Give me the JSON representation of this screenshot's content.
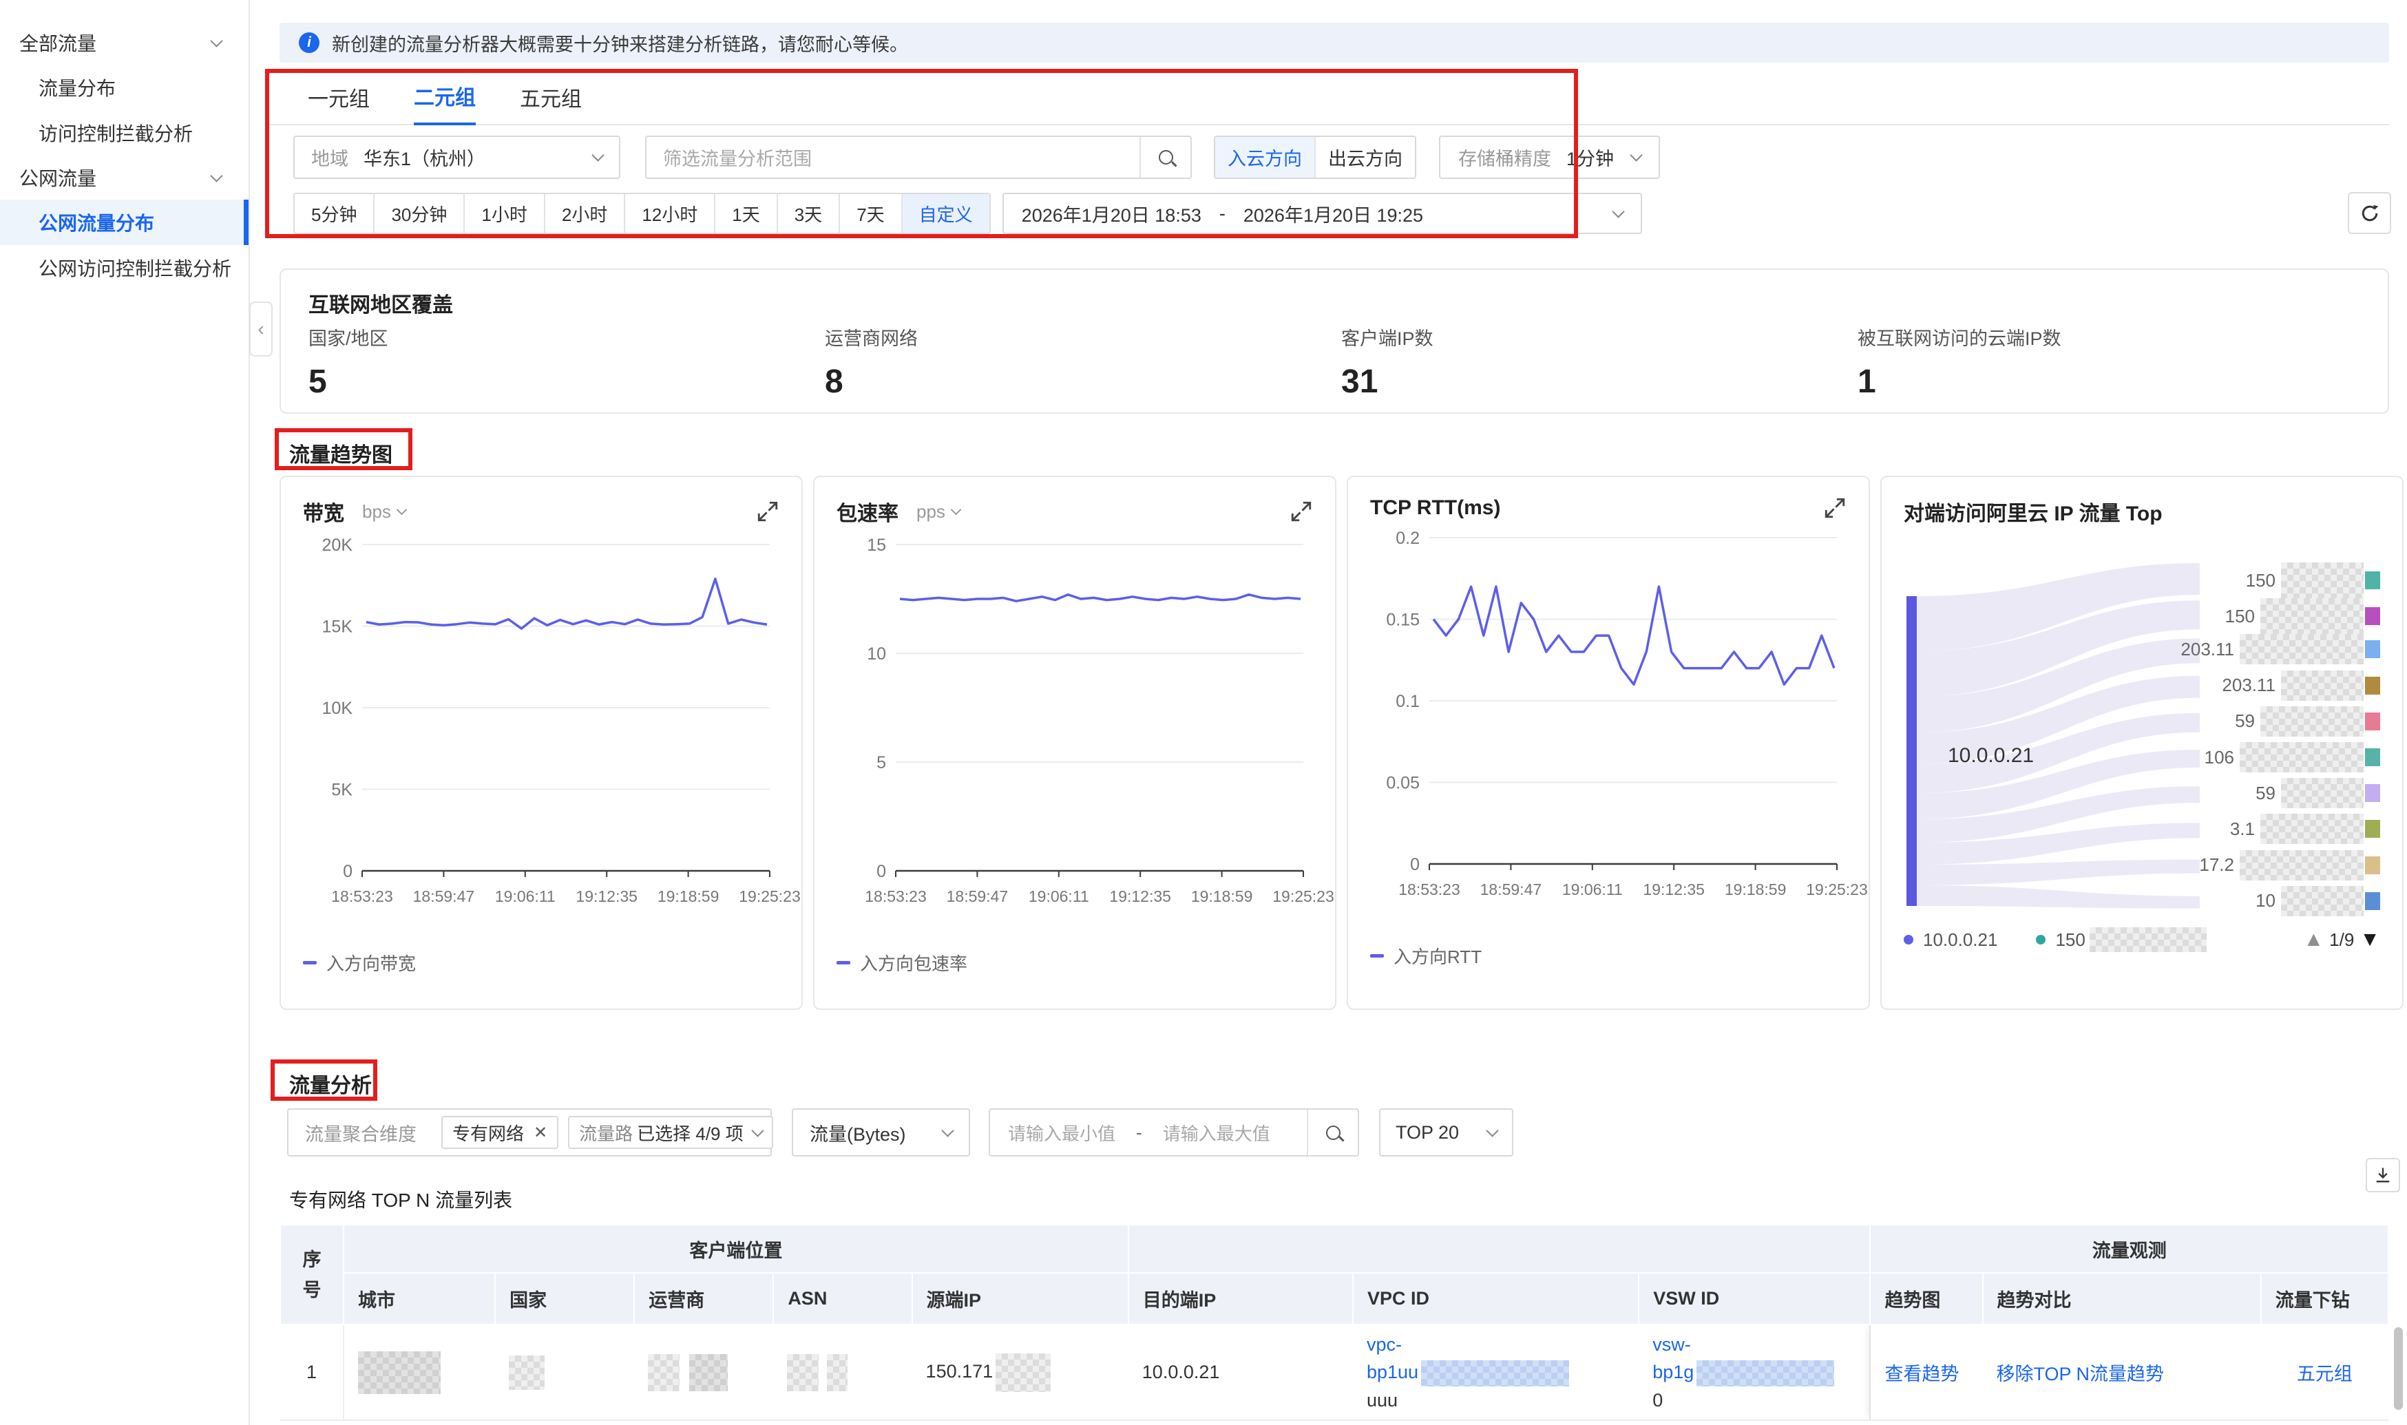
{
  "colors": {
    "accent": "#1a66ec",
    "line": "#5c5fe9",
    "annotation_red": "#e41d1d",
    "teal": "#2ea89f"
  },
  "sidebar": {
    "groups": [
      {
        "label": "全部流量",
        "items": [
          {
            "label": "流量分布",
            "active": false
          },
          {
            "label": "访问控制拦截分析",
            "active": false
          }
        ]
      },
      {
        "label": "公网流量",
        "items": [
          {
            "label": "公网流量分布",
            "active": true
          },
          {
            "label": "公网访问控制拦截分析",
            "active": false
          }
        ]
      }
    ]
  },
  "banner": {
    "text": "新创建的流量分析器大概需要十分钟来搭建分析链路，请您耐心等候。"
  },
  "tabs": [
    {
      "label": "一元组",
      "active": false
    },
    {
      "label": "二元组",
      "active": true
    },
    {
      "label": "五元组",
      "active": false
    }
  ],
  "filters": {
    "region_label": "地域",
    "region_value": "华东1（杭州）",
    "search_placeholder": "筛选流量分析范围",
    "direction_options": [
      {
        "label": "入云方向",
        "active": true
      },
      {
        "label": "出云方向",
        "active": false
      }
    ],
    "bucket_label": "存储桶精度",
    "bucket_value": "1分钟",
    "time_ranges": [
      "5分钟",
      "30分钟",
      "1小时",
      "2小时",
      "12小时",
      "1天",
      "3天",
      "7天",
      "自定义"
    ],
    "time_active": "自定义",
    "time_start": "2026年1月20日 18:53",
    "time_separator": "-",
    "time_end": "2026年1月20日 19:25"
  },
  "coverage": {
    "title": "互联网地区覆盖",
    "stats": [
      {
        "label": "国家/地区",
        "value": "5"
      },
      {
        "label": "运营商网络",
        "value": "8"
      },
      {
        "label": "客户端IP数",
        "value": "31"
      },
      {
        "label": "被互联网访问的云端IP数",
        "value": "1"
      }
    ]
  },
  "trend_section_title": "流量趋势图",
  "chart_data": [
    {
      "type": "line",
      "title": "带宽",
      "unit": "bps",
      "legend": "入方向带宽",
      "line_color": "#5c5fe9",
      "ylim": [
        0,
        20000
      ],
      "yticks": [
        {
          "label": "20K",
          "value": 20000
        },
        {
          "label": "15K",
          "value": 15000
        },
        {
          "label": "10K",
          "value": 10000
        },
        {
          "label": "5K",
          "value": 5000
        },
        {
          "label": "0",
          "value": 0
        }
      ],
      "x_ticks": [
        "18:53:23",
        "18:59:47",
        "19:06:11",
        "19:12:35",
        "19:18:59",
        "19:25:23"
      ],
      "values": [
        15250,
        15100,
        15150,
        15250,
        15230,
        15100,
        15050,
        15120,
        15220,
        15150,
        15120,
        15420,
        14850,
        15480,
        15050,
        15380,
        15120,
        15350,
        15100,
        15250,
        15120,
        15400,
        15150,
        15100,
        15120,
        15150,
        15550,
        17900,
        15150,
        15400,
        15220,
        15100
      ]
    },
    {
      "type": "line",
      "title": "包速率",
      "unit": "pps",
      "legend": "入方向包速率",
      "line_color": "#5c5fe9",
      "ylim": [
        0,
        15
      ],
      "yticks": [
        {
          "label": "15",
          "value": 15
        },
        {
          "label": "10",
          "value": 10
        },
        {
          "label": "5",
          "value": 5
        },
        {
          "label": "0",
          "value": 0
        }
      ],
      "x_ticks": [
        "18:53:23",
        "18:59:47",
        "19:06:11",
        "19:12:35",
        "19:18:59",
        "19:25:23"
      ],
      "values": [
        12.5,
        12.45,
        12.5,
        12.55,
        12.5,
        12.45,
        12.5,
        12.5,
        12.55,
        12.4,
        12.5,
        12.6,
        12.45,
        12.7,
        12.5,
        12.55,
        12.45,
        12.5,
        12.6,
        12.5,
        12.45,
        12.55,
        12.5,
        12.6,
        12.5,
        12.45,
        12.5,
        12.7,
        12.55,
        12.5,
        12.55,
        12.5
      ]
    },
    {
      "type": "line",
      "title": "TCP RTT(ms)",
      "unit": "",
      "legend": "入方向RTT",
      "line_color": "#5c5fe9",
      "ylim": [
        0,
        0.2
      ],
      "yticks": [
        {
          "label": "0.2",
          "value": 0.2
        },
        {
          "label": "0.15",
          "value": 0.15
        },
        {
          "label": "0.1",
          "value": 0.1
        },
        {
          "label": "0.05",
          "value": 0.05
        },
        {
          "label": "0",
          "value": 0
        }
      ],
      "x_ticks": [
        "18:53:23",
        "18:59:47",
        "19:06:11",
        "19:12:35",
        "19:18:59",
        "19:25:23"
      ],
      "values": [
        0.15,
        0.14,
        0.15,
        0.17,
        0.14,
        0.17,
        0.13,
        0.16,
        0.15,
        0.13,
        0.14,
        0.13,
        0.13,
        0.14,
        0.14,
        0.12,
        0.11,
        0.13,
        0.17,
        0.13,
        0.12,
        0.12,
        0.12,
        0.12,
        0.13,
        0.12,
        0.12,
        0.13,
        0.11,
        0.12,
        0.12,
        0.14,
        0.12
      ]
    },
    {
      "type": "sankey",
      "title": "对端访问阿里云 IP 流量 Top",
      "source": "10.0.0.21",
      "source_color": "#5b58e0",
      "flow_color": "#ebe8f7",
      "targets": [
        {
          "label": "150",
          "redacted": true,
          "color": "#4fb3a8"
        },
        {
          "label": "150",
          "redacted": true,
          "color": "#b84fc0"
        },
        {
          "label": "203.11",
          "redacted": true,
          "color": "#7ab0f0"
        },
        {
          "label": "203.11",
          "redacted": true,
          "color": "#b08a3e"
        },
        {
          "label": "59",
          "redacted": true,
          "color": "#e87a95"
        },
        {
          "label": "106",
          "redacted": true,
          "color": "#57b3a9"
        },
        {
          "label": "59",
          "redacted": true,
          "color": "#c2aef0"
        },
        {
          "label": "3.1",
          "redacted": true,
          "color": "#9fae55"
        },
        {
          "label": "17.2",
          "redacted": true,
          "color": "#d9bf8a"
        },
        {
          "label": "10",
          "redacted": true,
          "color": "#5a8fd8"
        }
      ],
      "legend": [
        {
          "label": "10.0.0.21",
          "color": "#5c5fe9"
        },
        {
          "label": "150",
          "redacted": true,
          "color": "#2ea89f"
        }
      ],
      "pagination": {
        "up": "▲",
        "page": "1/9",
        "down": "▼"
      }
    }
  ],
  "analysis": {
    "title": "流量分析",
    "agg_placeholder": "流量聚合维度",
    "tag": "专有网络",
    "tag_close": "✕",
    "path_partial": "流量路",
    "selected_text": "已选择 4/9 项",
    "metric_value": "流量(Bytes)",
    "min_placeholder": "请输入最小值",
    "range_separator": "-",
    "max_placeholder": "请输入最大值",
    "top_value": "TOP 20"
  },
  "table": {
    "title": "专有网络 TOP N 流量列表",
    "group_headers": {
      "client_location": "客户端位置",
      "observation": "流量观测"
    },
    "columns": [
      "序号",
      "城市",
      "国家",
      "运营商",
      "ASN",
      "源端IP",
      "目的端IP",
      "VPC ID",
      "VSW ID",
      "趋势图",
      "趋势对比",
      "流量下钻"
    ],
    "row": {
      "index": "1",
      "source_ip_prefix": "150.171",
      "dest_ip": "10.0.0.21",
      "vpc_line1": "vpc-",
      "vpc_line2": "bp1uu",
      "vpc_line3": "uuu",
      "vsw_line1": "vsw-",
      "vsw_line2": "bp1g",
      "vsw_line3": "0",
      "trend_link": "查看趋势",
      "compare_link": "移除TOP N流量趋势",
      "drill_link": "五元组"
    }
  }
}
